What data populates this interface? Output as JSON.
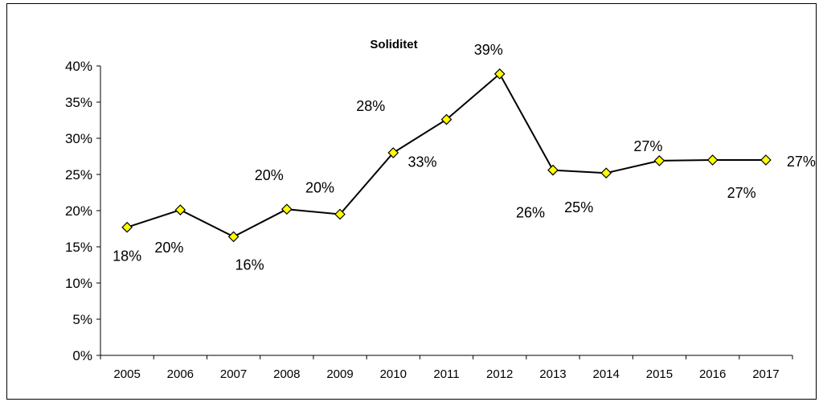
{
  "chart_data": {
    "type": "line",
    "title": "Soliditet",
    "xlabel": "",
    "ylabel": "",
    "categories": [
      "2005",
      "2006",
      "2007",
      "2008",
      "2009",
      "2010",
      "2011",
      "2012",
      "2013",
      "2014",
      "2015",
      "2016",
      "2017"
    ],
    "series": [
      {
        "values": [
          17.7,
          20.1,
          16.4,
          20.2,
          19.5,
          28.0,
          32.6,
          38.9,
          25.6,
          25.2,
          26.9,
          27.0,
          27.0
        ],
        "data_labels": [
          "18%",
          "20%",
          "16%",
          "20%",
          "20%",
          "28%",
          "33%",
          "39%",
          "26%",
          "25%",
          "27%",
          "27%",
          "27%"
        ],
        "color": "#000000",
        "marker_color": "#ffff00"
      }
    ],
    "ylim": [
      0,
      40
    ],
    "yticks": [
      0,
      5,
      10,
      15,
      20,
      25,
      30,
      35,
      40
    ],
    "ytick_labels": [
      "0%",
      "5%",
      "10%",
      "15%",
      "20%",
      "25%",
      "30%",
      "35%",
      "40%"
    ],
    "grid": false,
    "legend": "none"
  }
}
